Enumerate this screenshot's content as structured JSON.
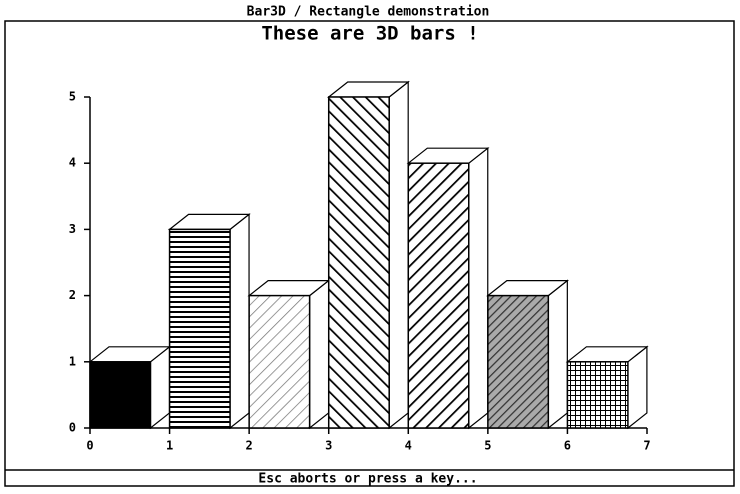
{
  "window_title": "Bar3D / Rectangle demonstration",
  "status": "Esc aborts or press a key...",
  "chart_data": {
    "type": "bar",
    "title": "These are 3D bars !",
    "x": [
      0,
      1,
      2,
      3,
      4,
      5,
      6
    ],
    "values": [
      1,
      3,
      2,
      5,
      4,
      2,
      1
    ],
    "xlim": [
      0,
      7
    ],
    "xticks": [
      0,
      1,
      2,
      3,
      4,
      5,
      6,
      7
    ],
    "ylim": [
      0,
      5
    ],
    "yticks": [
      0,
      1,
      2,
      3,
      4,
      5
    ],
    "color": "#000000"
  }
}
